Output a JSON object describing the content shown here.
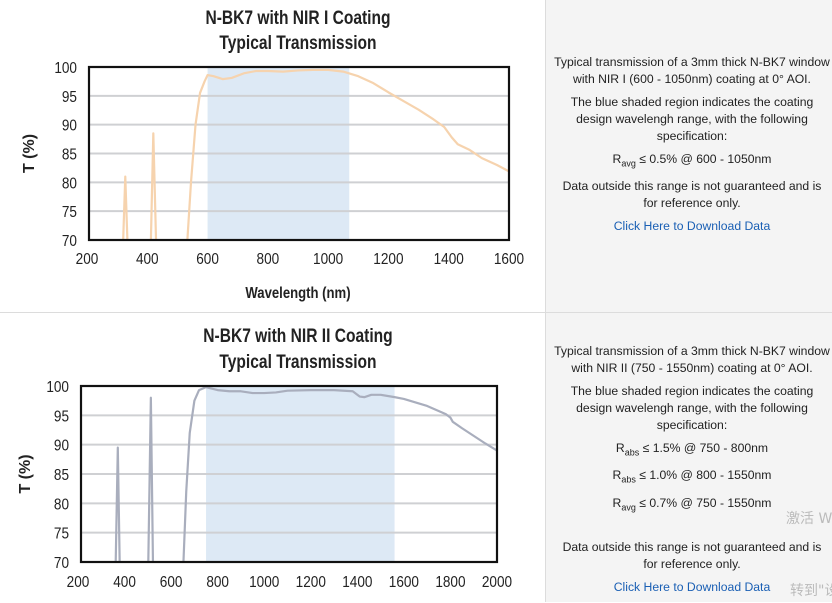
{
  "panels": [
    {
      "description": "Typical transmission of a 3mm thick N-BK7 window with NIR I (600 - 1050nm) coating at 0° AOI.",
      "shading_note": "The blue shaded region indicates the coating design wavelengh range, with the following specification:",
      "specs": [
        {
          "symbol": "R",
          "sub": "avg",
          "text": " ≤ 0.5% @ 600 - 1050nm"
        }
      ],
      "disclaimer": "Data outside this range is not guaranteed and is for reference only.",
      "download_link": "Click Here to Download Data"
    },
    {
      "description": "Typical transmission of a 3mm thick N-BK7 window with NIR II (750 - 1550nm) coating at 0° AOI.",
      "shading_note": "The blue shaded region indicates the coating design wavelengh range, with the following specification:",
      "specs": [
        {
          "symbol": "R",
          "sub": "abs",
          "text": " ≤ 1.5% @ 750 - 800nm"
        },
        {
          "symbol": "R",
          "sub": "abs",
          "text": " ≤ 1.0% @ 800 - 1550nm"
        },
        {
          "symbol": "R",
          "sub": "avg",
          "text": " ≤ 0.7% @ 750 - 1550nm"
        }
      ],
      "disclaimer": "Data outside this range is not guaranteed and is for reference only.",
      "download_link": "Click Here to Download Data"
    }
  ],
  "watermark": [
    "激活 W",
    "转到\"设"
  ],
  "chart_data": [
    {
      "type": "line",
      "title": "N-BK7 with NIR I Coating",
      "subtitle": "Typical Transmission",
      "xlabel": "Wavelength (nm)",
      "ylabel": "T (%)",
      "xlim": [
        200,
        1600
      ],
      "ylim": [
        70,
        100
      ],
      "xticks": [
        "200",
        "400",
        "600",
        "800",
        "1000",
        "1200",
        "1400",
        "1600"
      ],
      "yticks": [
        "70",
        "75",
        "80",
        "85",
        "90",
        "95",
        "100"
      ],
      "grid": true,
      "shaded_region": [
        600,
        1070
      ],
      "shade_color": "#dde9f5",
      "line_color": "#f6d3ae",
      "segments": [
        [
          [
            320,
            70
          ],
          [
            327,
            81
          ],
          [
            334,
            70
          ]
        ],
        [
          [
            412,
            70
          ],
          [
            420,
            88.5
          ],
          [
            429,
            70
          ]
        ],
        [
          [
            533,
            70
          ],
          [
            545,
            80
          ],
          [
            560,
            90
          ],
          [
            575,
            95.5
          ],
          [
            590,
            97.5
          ],
          [
            600,
            98.6
          ],
          [
            620,
            98.4
          ],
          [
            650,
            97.9
          ],
          [
            680,
            98.1
          ],
          [
            720,
            98.9
          ],
          [
            760,
            99.3
          ],
          [
            800,
            99.3
          ],
          [
            850,
            99.2
          ],
          [
            900,
            99.4
          ],
          [
            950,
            99.5
          ],
          [
            1000,
            99.5
          ],
          [
            1050,
            99.2
          ],
          [
            1100,
            98.4
          ],
          [
            1150,
            97.2
          ],
          [
            1200,
            95.6
          ],
          [
            1250,
            94.1
          ],
          [
            1300,
            92.6
          ],
          [
            1350,
            90.9
          ],
          [
            1385,
            89.6
          ],
          [
            1410,
            87.8
          ],
          [
            1430,
            86.6
          ],
          [
            1470,
            85.6
          ],
          [
            1510,
            84.2
          ],
          [
            1560,
            83.0
          ],
          [
            1600,
            81.9
          ]
        ]
      ]
    },
    {
      "type": "line",
      "title": "N-BK7 with NIR II Coating",
      "subtitle": "Typical Transmission",
      "xlabel": "",
      "ylabel": "T (%)",
      "xlim": [
        200,
        2000
      ],
      "ylim": [
        70,
        100
      ],
      "xticks": [
        "200",
        "400",
        "600",
        "800",
        "1000",
        "1200",
        "1400",
        "1600",
        "1800",
        "2000"
      ],
      "yticks": [
        "70",
        "75",
        "80",
        "85",
        "90",
        "95",
        "100"
      ],
      "grid": true,
      "shaded_region": [
        750,
        1560
      ],
      "shade_color": "#dde9f5",
      "line_color": "#a9aebd",
      "segments": [
        [
          [
            362,
            70
          ],
          [
            371,
            89.5
          ],
          [
            379,
            70
          ]
        ],
        [
          [
            502,
            70
          ],
          [
            513,
            98
          ],
          [
            522,
            70
          ]
        ],
        [
          [
            653,
            70
          ],
          [
            665,
            82
          ],
          [
            680,
            92
          ],
          [
            700,
            97.5
          ],
          [
            720,
            99.3
          ],
          [
            750,
            99.8
          ],
          [
            800,
            99.3
          ],
          [
            850,
            99.1
          ],
          [
            900,
            99.1
          ],
          [
            950,
            98.8
          ],
          [
            1000,
            98.8
          ],
          [
            1050,
            98.9
          ],
          [
            1100,
            99.2
          ],
          [
            1200,
            99.3
          ],
          [
            1300,
            99.3
          ],
          [
            1380,
            99.1
          ],
          [
            1410,
            98.2
          ],
          [
            1430,
            98.1
          ],
          [
            1460,
            98.5
          ],
          [
            1500,
            98.5
          ],
          [
            1560,
            98.1
          ],
          [
            1600,
            97.8
          ],
          [
            1700,
            96.6
          ],
          [
            1780,
            95.2
          ],
          [
            1800,
            94.6
          ],
          [
            1810,
            93.9
          ],
          [
            1850,
            92.8
          ],
          [
            1900,
            91.5
          ],
          [
            1950,
            90.2
          ],
          [
            2000,
            89
          ]
        ]
      ]
    }
  ]
}
